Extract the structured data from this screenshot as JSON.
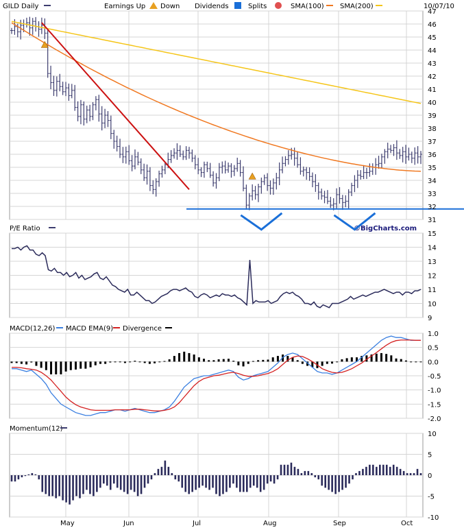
{
  "header": {
    "symbol": "GILD Daily",
    "earnings_label": "Earnings Up",
    "down_label": "Down",
    "dividends_label": "Dividends",
    "splits_label": "Splits",
    "sma100_label": "SMA(100)",
    "sma200_label": "SMA(200)",
    "date": "10/07/10"
  },
  "brand": "©BigCharts.com",
  "colors": {
    "price_bar": "#3c3c6e",
    "sma100": "#f07820",
    "sma200": "#f5c518",
    "trendline": "#cc1111",
    "support": "#1a6fd8",
    "macd": "#3a7fe0",
    "macd_ema": "#d42020",
    "divergence": "#000000",
    "grid": "#d4d4d4",
    "pe_line": "#2a2a5a",
    "momentum_bar": "#2a2a5a"
  },
  "icons": {
    "down_triangle": "warning-triangle-icon",
    "dividend_square": "dividend-d-icon",
    "split_circle": "split-circle-icon"
  },
  "chart_data": [
    {
      "type": "ohlc",
      "panel": "price",
      "xlabels": [
        "May",
        "Jun",
        "Jul",
        "Aug",
        "Sep",
        "Oct"
      ],
      "yticks": [
        31,
        32,
        33,
        34,
        35,
        36,
        37,
        38,
        39,
        40,
        41,
        42,
        43,
        44,
        45,
        46,
        47
      ],
      "ylim": [
        31,
        47
      ],
      "close": [
        45.5,
        45.8,
        45.4,
        45.9,
        46.0,
        46.1,
        45.7,
        46.2,
        45.8,
        45.6,
        45.9,
        45.3,
        42.2,
        41.5,
        40.9,
        41.6,
        41.2,
        40.8,
        41.1,
        40.5,
        40.9,
        39.6,
        38.9,
        39.8,
        38.7,
        39.4,
        38.9,
        39.8,
        40.2,
        39.1,
        38.4,
        39.0,
        38.6,
        37.6,
        37.0,
        36.6,
        36.0,
        35.8,
        36.2,
        35.5,
        35.1,
        35.8,
        35.4,
        34.8,
        34.2,
        34.7,
        33.6,
        33.3,
        33.9,
        34.5,
        34.8,
        35.2,
        35.6,
        35.9,
        36.1,
        36.3,
        36.0,
        35.8,
        36.3,
        36.1,
        35.7,
        35.2,
        34.8,
        34.6,
        35.2,
        34.9,
        34.4,
        33.8,
        34.2,
        35.0,
        35.1,
        34.8,
        35.1,
        34.7,
        34.9,
        35.3,
        34.6,
        33.4,
        32.1,
        32.8,
        33.2,
        32.9,
        33.5,
        33.9,
        34.2,
        33.6,
        33.4,
        33.8,
        34.2,
        34.8,
        35.3,
        35.6,
        35.9,
        36.0,
        35.7,
        35.2,
        34.7,
        34.8,
        34.6,
        34.3,
        33.9,
        33.6,
        33.1,
        32.8,
        32.7,
        32.4,
        32.1,
        32.2,
        32.9,
        32.6,
        32.3,
        32.4,
        33.1,
        33.6,
        34.0,
        34.4,
        34.3,
        34.6,
        34.6,
        34.7,
        35.0,
        35.2,
        35.3,
        35.8,
        36.2,
        36.4,
        36.3,
        36.5,
        36.1,
        35.9,
        36.2,
        35.8,
        36.0,
        35.7,
        36.1,
        35.8,
        36.0
      ],
      "series": [
        {
          "name": "SMA(100)",
          "start": 46.1,
          "end": 34.7
        },
        {
          "name": "SMA(200)",
          "start": 46.2,
          "end": 39.9
        }
      ],
      "earnings_markers": [
        {
          "index": 11,
          "value": 44.4
        },
        {
          "index": 80,
          "value": 34.3
        }
      ],
      "trendline": {
        "from": {
          "index": 10,
          "value": 46.1
        },
        "to": {
          "index": 59,
          "value": 33.3
        }
      },
      "support": 31.8,
      "double_bottom_marks": [
        {
          "index": 83
        },
        {
          "index": 114
        }
      ]
    },
    {
      "type": "line",
      "panel": "pe_ratio",
      "title": "P/E Ratio",
      "yticks": [
        9,
        10,
        11,
        12,
        13,
        14,
        15
      ],
      "ylim": [
        9,
        15
      ],
      "values": [
        13.9,
        13.9,
        14.0,
        13.8,
        14.0,
        14.1,
        13.8,
        13.8,
        13.5,
        13.4,
        13.6,
        13.4,
        12.4,
        12.3,
        12.5,
        12.2,
        12.2,
        12.0,
        12.2,
        11.9,
        12.0,
        12.2,
        11.8,
        12.0,
        11.7,
        11.8,
        11.9,
        12.1,
        12.2,
        11.8,
        11.7,
        11.9,
        11.6,
        11.3,
        11.2,
        11.0,
        10.9,
        10.8,
        11.0,
        10.6,
        10.6,
        10.8,
        10.6,
        10.4,
        10.2,
        10.2,
        10.0,
        10.1,
        10.3,
        10.5,
        10.6,
        10.7,
        10.9,
        11.0,
        11.0,
        10.9,
        11.0,
        11.1,
        10.9,
        10.8,
        10.5,
        10.4,
        10.6,
        10.7,
        10.6,
        10.4,
        10.5,
        10.6,
        10.5,
        10.7,
        10.6,
        10.6,
        10.5,
        10.6,
        10.4,
        10.3,
        10.1,
        9.9,
        13.1,
        10.0,
        10.2,
        10.1,
        10.1,
        10.1,
        10.2,
        10.0,
        10.1,
        10.2,
        10.5,
        10.7,
        10.8,
        10.7,
        10.8,
        10.6,
        10.5,
        10.3,
        10.0,
        10.0,
        9.9,
        10.1,
        9.8,
        9.7,
        9.9,
        9.8,
        9.7,
        10.0,
        10.0,
        10.0,
        10.1,
        10.2,
        10.3,
        10.5,
        10.3,
        10.4,
        10.5,
        10.6,
        10.5,
        10.6,
        10.7,
        10.8,
        10.8,
        10.9,
        11.0,
        10.9,
        10.8,
        10.7,
        10.8,
        10.8,
        10.6,
        10.8,
        10.8,
        10.7,
        10.9,
        10.9,
        11.0
      ]
    },
    {
      "type": "line",
      "panel": "macd",
      "legend": [
        "MACD(12,26)",
        "MACD EMA(9)",
        "Divergence"
      ],
      "yticks": [
        -2.0,
        -1.5,
        -1.0,
        -0.5,
        0.0,
        0.5,
        1.0
      ],
      "ylim": [
        -2.0,
        1.0
      ],
      "series": [
        {
          "name": "MACD(12,26)",
          "values": [
            -0.25,
            -0.25,
            -0.3,
            -0.35,
            -0.3,
            -0.45,
            -0.6,
            -0.8,
            -1.1,
            -1.3,
            -1.5,
            -1.6,
            -1.7,
            -1.8,
            -1.85,
            -1.9,
            -1.9,
            -1.85,
            -1.8,
            -1.8,
            -1.75,
            -1.7,
            -1.7,
            -1.75,
            -1.7,
            -1.65,
            -1.7,
            -1.75,
            -1.8,
            -1.8,
            -1.75,
            -1.7,
            -1.6,
            -1.4,
            -1.15,
            -0.9,
            -0.75,
            -0.6,
            -0.55,
            -0.5,
            -0.5,
            -0.45,
            -0.4,
            -0.35,
            -0.3,
            -0.35,
            -0.55,
            -0.65,
            -0.6,
            -0.5,
            -0.45,
            -0.4,
            -0.35,
            -0.2,
            -0.05,
            0.15,
            0.25,
            0.3,
            0.25,
            0.1,
            -0.05,
            -0.2,
            -0.35,
            -0.4,
            -0.4,
            -0.45,
            -0.4,
            -0.3,
            -0.2,
            -0.1,
            0.0,
            0.15,
            0.3,
            0.45,
            0.6,
            0.75,
            0.85,
            0.9,
            0.85,
            0.85,
            0.8,
            0.75,
            0.75,
            0.75
          ]
        },
        {
          "name": "MACD EMA(9)",
          "values": [
            -0.2,
            -0.2,
            -0.22,
            -0.25,
            -0.27,
            -0.3,
            -0.38,
            -0.5,
            -0.65,
            -0.85,
            -1.05,
            -1.25,
            -1.4,
            -1.52,
            -1.6,
            -1.65,
            -1.7,
            -1.72,
            -1.72,
            -1.72,
            -1.72,
            -1.7,
            -1.7,
            -1.7,
            -1.7,
            -1.68,
            -1.68,
            -1.7,
            -1.72,
            -1.74,
            -1.74,
            -1.72,
            -1.68,
            -1.6,
            -1.45,
            -1.25,
            -1.05,
            -0.85,
            -0.7,
            -0.6,
            -0.55,
            -0.5,
            -0.48,
            -0.44,
            -0.4,
            -0.38,
            -0.42,
            -0.48,
            -0.52,
            -0.52,
            -0.5,
            -0.46,
            -0.42,
            -0.35,
            -0.25,
            -0.1,
            0.05,
            0.15,
            0.2,
            0.18,
            0.1,
            0.0,
            -0.12,
            -0.25,
            -0.32,
            -0.38,
            -0.4,
            -0.38,
            -0.32,
            -0.25,
            -0.15,
            -0.05,
            0.08,
            0.2,
            0.32,
            0.45,
            0.58,
            0.68,
            0.74,
            0.76,
            0.76,
            0.76,
            0.75,
            0.75
          ]
        },
        {
          "name": "Divergence",
          "values": [
            -0.05,
            -0.05,
            -0.08,
            -0.1,
            -0.03,
            -0.15,
            -0.22,
            -0.3,
            -0.45,
            -0.45,
            -0.45,
            -0.35,
            -0.3,
            -0.28,
            -0.25,
            -0.25,
            -0.2,
            -0.13,
            -0.08,
            -0.08,
            -0.03,
            0.0,
            0.0,
            -0.05,
            0.0,
            0.03,
            -0.02,
            -0.05,
            -0.08,
            -0.06,
            -0.01,
            0.02,
            0.08,
            0.2,
            0.3,
            0.35,
            0.3,
            0.25,
            0.15,
            0.1,
            0.05,
            0.05,
            0.08,
            0.09,
            0.1,
            0.03,
            -0.13,
            -0.17,
            -0.08,
            0.02,
            0.05,
            0.06,
            0.07,
            0.15,
            0.2,
            0.25,
            0.2,
            0.15,
            0.05,
            -0.08,
            -0.15,
            -0.2,
            -0.23,
            -0.15,
            -0.08,
            -0.07,
            0.0,
            0.08,
            0.12,
            0.15,
            0.15,
            0.2,
            0.22,
            0.25,
            0.28,
            0.3,
            0.27,
            0.22,
            0.11,
            0.09,
            0.04,
            -0.01,
            0.0,
            0.0
          ]
        }
      ]
    },
    {
      "type": "bar",
      "panel": "momentum",
      "title": "Momentum(12)",
      "yticks": [
        -10,
        -5,
        0,
        5,
        10
      ],
      "ylim": [
        -10,
        10
      ],
      "values": [
        -1.5,
        -1.5,
        -1.0,
        -0.5,
        -0.2,
        0.2,
        0.5,
        0.2,
        -1.0,
        -4.0,
        -4.5,
        -5.0,
        -5.0,
        -5.5,
        -5.0,
        -6.0,
        -6.5,
        -7.0,
        -6.0,
        -5.0,
        -5.5,
        -4.5,
        -3.5,
        -4.5,
        -5.0,
        -4.0,
        -3.0,
        -2.0,
        -2.5,
        -3.5,
        -2.0,
        -3.0,
        -3.5,
        -4.0,
        -4.5,
        -3.5,
        -4.0,
        -5.0,
        -4.5,
        -3.0,
        -2.0,
        -1.0,
        0.5,
        1.5,
        2.0,
        3.5,
        2.0,
        0.5,
        -1.0,
        -1.5,
        -3.0,
        -4.0,
        -4.5,
        -4.0,
        -3.5,
        -3.0,
        -2.5,
        -3.0,
        -3.5,
        -3.0,
        -4.5,
        -5.0,
        -4.5,
        -4.0,
        -3.0,
        -2.0,
        -3.0,
        -4.0,
        -4.0,
        -4.0,
        -3.0,
        -2.5,
        -3.0,
        -4.0,
        -3.5,
        -2.0,
        -1.5,
        -2.0,
        -1.0,
        2.5,
        2.5,
        2.5,
        3.0,
        2.0,
        1.5,
        0.5,
        1.0,
        1.0,
        0.5,
        -0.5,
        -1.0,
        -2.5,
        -3.0,
        -3.5,
        -4.0,
        -4.5,
        -4.0,
        -3.5,
        -3.0,
        -2.0,
        -1.0,
        0.5,
        1.0,
        1.5,
        2.0,
        2.5,
        2.5,
        2.0,
        2.5,
        2.5,
        2.5,
        2.0,
        2.5,
        2.0,
        1.5,
        1.0,
        0.5,
        0.5,
        0.5,
        1.5,
        0.5
      ]
    }
  ]
}
